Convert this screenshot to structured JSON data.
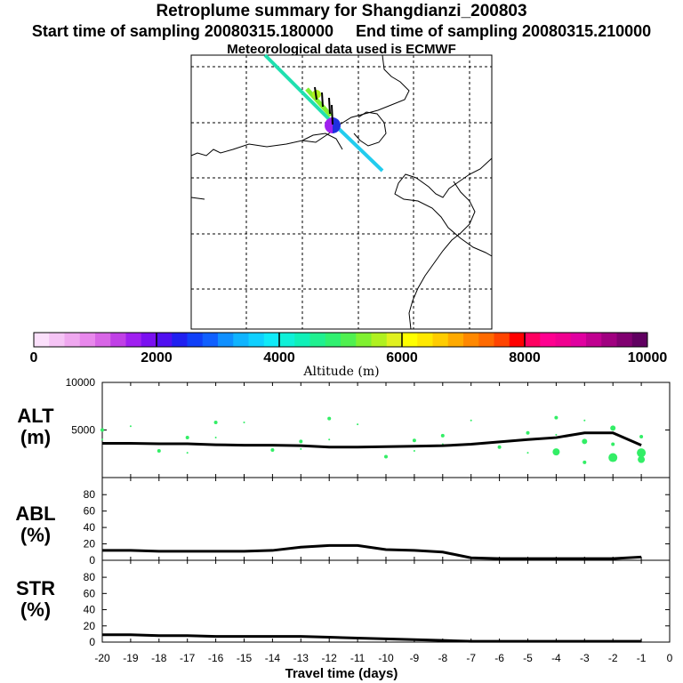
{
  "header": {
    "title": "Retroplume summary for Shangdianzi_200803",
    "start_label": "Start time of sampling 20080315.180000",
    "end_label": "End time of sampling 20080315.210000",
    "met_label": "Meteorological data used is ECMWF"
  },
  "colorbar": {
    "title": "Altitude (m)",
    "tick_labels": [
      "0",
      "2000",
      "4000",
      "6000",
      "8000",
      "10000"
    ],
    "range": [
      0,
      10000
    ],
    "colors": [
      "#fbe0fb",
      "#f5c4f5",
      "#efa8ef",
      "#e888ec",
      "#d866e6",
      "#c040e6",
      "#a020f0",
      "#7a10f0",
      "#5010f0",
      "#2020f0",
      "#1040f8",
      "#1060ff",
      "#1090ff",
      "#10b4ff",
      "#10d0ff",
      "#10eaf8",
      "#10f0d8",
      "#10f0b8",
      "#20f090",
      "#30f070",
      "#50f050",
      "#80f030",
      "#b0f020",
      "#e0f020",
      "#ffff00",
      "#ffe800",
      "#ffcc00",
      "#ffaa00",
      "#ff8800",
      "#ff6a00",
      "#ff4400",
      "#ff0000",
      "#ff0060",
      "#ff0090",
      "#f00090",
      "#e000a0",
      "#c00090",
      "#a00080",
      "#800070",
      "#600060"
    ]
  },
  "chart_data": [
    {
      "type": "scatter",
      "name": "ALT",
      "ylabel": "ALT",
      "yunit": "(m)",
      "ylim": [
        0,
        10000
      ],
      "yticks": [
        5000,
        10000
      ],
      "xlim": [
        -20,
        0
      ],
      "mean_line": {
        "x": [
          -20,
          -19,
          -18,
          -17,
          -16,
          -15,
          -14,
          -13,
          -12,
          -11,
          -10,
          -9,
          -8,
          -7,
          -6,
          -5,
          -4,
          -3,
          -2,
          -1
        ],
        "y": [
          3600,
          3600,
          3550,
          3550,
          3450,
          3400,
          3400,
          3350,
          3200,
          3200,
          3250,
          3300,
          3350,
          3500,
          3750,
          4000,
          4200,
          4700,
          4700,
          3400
        ]
      },
      "points_color": "#33ee66",
      "points": [
        {
          "x": -20,
          "y": [
            5000,
            4000,
            3300
          ]
        },
        {
          "x": -19,
          "y": [
            5400,
            4000,
            3000
          ]
        },
        {
          "x": -18,
          "y": [
            5400,
            4200,
            2800
          ]
        },
        {
          "x": -17,
          "y": [
            5800,
            4200,
            2600
          ]
        },
        {
          "x": -16,
          "y": [
            5800,
            4200,
            3000,
            2500
          ]
        },
        {
          "x": -15,
          "y": [
            5800,
            3900,
            3000
          ]
        },
        {
          "x": -14,
          "y": [
            5800,
            4000,
            2900
          ]
        },
        {
          "x": -13,
          "y": [
            6200,
            3800,
            3000,
            2300
          ]
        },
        {
          "x": -12,
          "y": [
            6200,
            4000,
            3000,
            1600
          ]
        },
        {
          "x": -11,
          "y": [
            5600,
            3900,
            2200
          ]
        },
        {
          "x": -10,
          "y": [
            6400,
            3800,
            2200
          ]
        },
        {
          "x": -9,
          "y": [
            5800,
            3900,
            2800,
            2100
          ]
        },
        {
          "x": -8,
          "y": [
            4400,
            3500,
            2000
          ]
        },
        {
          "x": -7,
          "y": [
            6000,
            4800,
            3300
          ]
        },
        {
          "x": -6,
          "y": [
            5000,
            4400,
            3200
          ]
        },
        {
          "x": -5,
          "y": [
            6100,
            4700,
            2600
          ]
        },
        {
          "x": -4,
          "y": [
            6300,
            4500,
            2700
          ]
        },
        {
          "x": -3,
          "y": [
            6000,
            5300,
            3800,
            1600
          ]
        },
        {
          "x": -2,
          "y": [
            5600,
            5200,
            3500,
            2100
          ]
        },
        {
          "x": -1,
          "y": [
            5000,
            4300,
            2600,
            1900
          ]
        }
      ]
    },
    {
      "type": "line",
      "name": "ABL",
      "ylabel": "ABL",
      "yunit": "(%)",
      "ylim": [
        0,
        90
      ],
      "yticks": [
        0,
        20,
        40,
        60,
        80
      ],
      "xlim": [
        -20,
        0
      ],
      "x": [
        -20,
        -19,
        -18,
        -17,
        -16,
        -15,
        -14,
        -13,
        -12,
        -11,
        -10,
        -9,
        -8,
        -7,
        -6,
        -5,
        -4,
        -3,
        -2,
        -1
      ],
      "y": [
        12,
        12,
        11,
        11,
        11,
        11,
        12,
        16,
        18,
        18,
        13,
        12,
        10,
        3,
        2,
        2,
        2,
        2,
        2,
        4
      ]
    },
    {
      "type": "line",
      "name": "STR",
      "ylabel": "STR",
      "yunit": "(%)",
      "ylim": [
        0,
        90
      ],
      "yticks": [
        0,
        20,
        40,
        60,
        80
      ],
      "xlim": [
        -20,
        0
      ],
      "xlabel": "Travel time (days)",
      "xticks": [
        "-20",
        "-19",
        "-18",
        "-17",
        "-16",
        "-15",
        "-14",
        "-13",
        "-12",
        "-11",
        "-10",
        "-9",
        "-8",
        "-7",
        "-6",
        "-5",
        "-4",
        "-3",
        "-2",
        "-1",
        "0"
      ],
      "x": [
        -20,
        -19,
        -18,
        -17,
        -16,
        -15,
        -14,
        -13,
        -12,
        -11,
        -10,
        -9,
        -8,
        -7,
        -6,
        -5,
        -4,
        -3,
        -2,
        -1
      ],
      "y": [
        9,
        9,
        8,
        8,
        7,
        7,
        7,
        7,
        6,
        5,
        4,
        3,
        2,
        1,
        1,
        1,
        1,
        1,
        1,
        1
      ]
    }
  ]
}
